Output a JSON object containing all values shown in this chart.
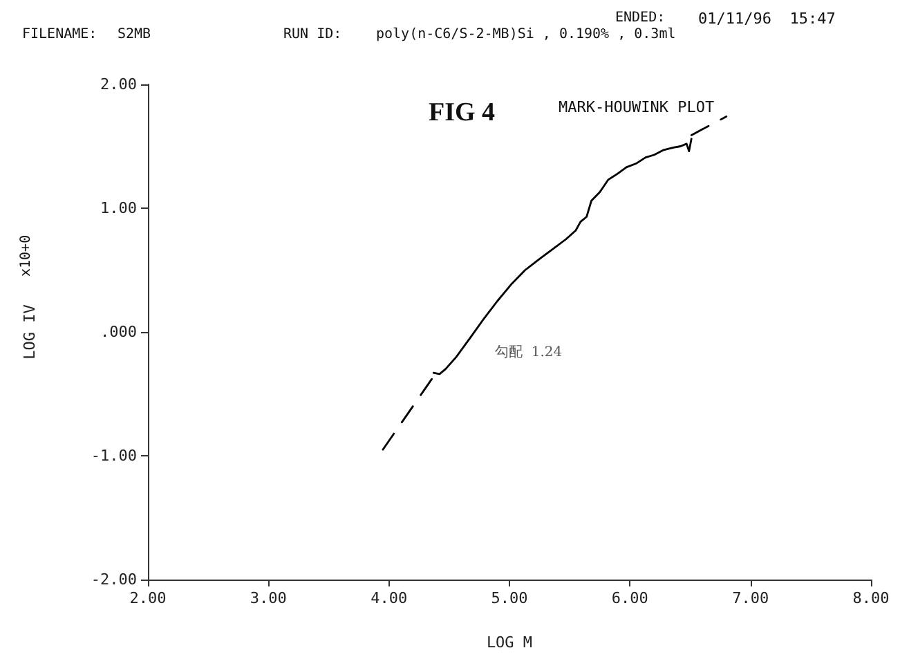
{
  "chart_data": {
    "type": "line",
    "title": "FIG 4",
    "subtitle": "MARK-HOUWINK PLOT",
    "xlabel": "LOG M",
    "ylabel": "LOG IV",
    "annotations": [
      "FILENAME:",
      "S2MB",
      "RUN ID:",
      "poly(n-C6/S-2-MB)Si , 0.190% , 0.3ml",
      "ENDED:",
      "01/11/96  15:47",
      "x10+0",
      "勾配  1.24"
    ],
    "series": [
      {
        "color": "#000000",
        "line_style": "solid",
        "x": [
          4.37,
          4.42,
          4.47,
          4.56,
          4.68,
          4.79,
          4.9,
          5.02,
          5.13,
          5.25,
          5.36,
          5.47,
          5.55,
          5.59,
          5.64,
          5.68,
          5.75,
          5.82,
          5.9,
          5.97,
          6.05,
          6.13,
          6.2,
          6.28,
          6.36,
          6.42,
          6.47,
          6.49,
          6.51
        ],
        "values": [
          -0.33,
          -0.34,
          -0.3,
          -0.2,
          -0.04,
          0.11,
          0.25,
          0.39,
          0.5,
          0.59,
          0.67,
          0.75,
          0.82,
          0.89,
          0.93,
          1.06,
          1.13,
          1.23,
          1.28,
          1.33,
          1.36,
          1.41,
          1.43,
          1.47,
          1.49,
          1.5,
          1.52,
          1.46,
          1.56
        ]
      },
      {
        "color": "#000000",
        "line_style": "dashed",
        "x": [
          3.95,
          4.37,
          null,
          6.51,
          6.8
        ],
        "values": [
          -0.95,
          -0.36,
          null,
          1.59,
          1.74
        ]
      }
    ],
    "xlim": [
      2,
      8
    ],
    "ylim": [
      -2,
      2
    ],
    "xticks": [
      {
        "value": 2,
        "label": "2.00"
      },
      {
        "value": 3,
        "label": "3.00"
      },
      {
        "value": 4,
        "label": "4.00"
      },
      {
        "value": 5,
        "label": "5.00"
      },
      {
        "value": 6,
        "label": "6.00"
      },
      {
        "value": 7,
        "label": "7.00"
      },
      {
        "value": 8,
        "label": "8.00"
      }
    ],
    "yticks": [
      {
        "value": -2,
        "label": "-2.00"
      },
      {
        "value": -1,
        "label": "-1.00"
      },
      {
        "value": 0,
        "label": ".000"
      },
      {
        "value": 1,
        "label": "1.00"
      },
      {
        "value": 2,
        "label": "2.00"
      }
    ],
    "grid": false,
    "marker": "none"
  }
}
